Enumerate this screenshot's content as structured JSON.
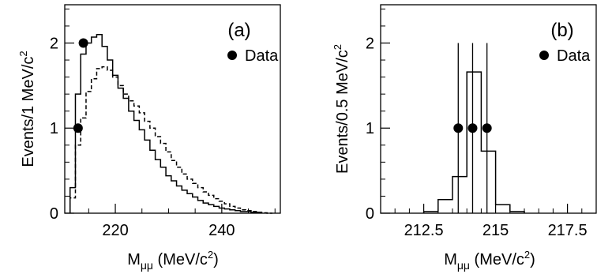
{
  "chart_data": [
    {
      "panel": "a",
      "panel_label": "(a)",
      "type": "line",
      "ylabel": "Events/1 MeV/c",
      "ylabel_sup": "2",
      "xlabel": "M",
      "xlabel_sub": "μμ",
      "xlabel_tail": " (MeV/c",
      "xlabel_sup": "2",
      "xlabel_close": ")",
      "xlim": [
        210.5,
        251
      ],
      "ylim": [
        0,
        2.45
      ],
      "xticks": [
        220,
        240
      ],
      "yticks": [
        0,
        1,
        2
      ],
      "legend": "Data",
      "series": [
        {
          "style": "solid",
          "edges": [
            211.5,
            212.5,
            213.5,
            214.5,
            215.5,
            216.5,
            217.5,
            218.5,
            219.5,
            220.5,
            221.5,
            222.5,
            223.5,
            224.5,
            225.5,
            226.5,
            227.5,
            228.5,
            229.5,
            230.5,
            231.5,
            232.5,
            233.5,
            234.5,
            235.5,
            236.5,
            237.5,
            238.5,
            239.5,
            240.5,
            241.5,
            242.5,
            243.5,
            244.5,
            245.5,
            246.5,
            247.5
          ],
          "values": [
            0.3,
            1.4,
            1.87,
            2.0,
            2.07,
            2.1,
            1.96,
            1.8,
            1.62,
            1.47,
            1.35,
            1.2,
            1.09,
            0.98,
            0.86,
            0.74,
            0.63,
            0.54,
            0.44,
            0.38,
            0.32,
            0.27,
            0.23,
            0.19,
            0.15,
            0.12,
            0.1,
            0.08,
            0.06,
            0.05,
            0.04,
            0.03,
            0.02,
            0.02,
            0.01,
            0.01
          ]
        },
        {
          "style": "dashed",
          "edges": [
            211.5,
            212.5,
            213.5,
            214.5,
            215.5,
            216.5,
            217.5,
            218.5,
            219.5,
            220.5,
            221.5,
            222.5,
            223.5,
            224.5,
            225.5,
            226.5,
            227.5,
            228.5,
            229.5,
            230.5,
            231.5,
            232.5,
            233.5,
            234.5,
            235.5,
            236.5,
            237.5,
            238.5,
            239.5,
            240.5,
            241.5,
            242.5,
            243.5,
            244.5,
            245.5,
            246.5,
            247.5,
            248.5,
            249.5
          ],
          "values": [
            0.18,
            0.8,
            1.12,
            1.43,
            1.58,
            1.7,
            1.72,
            1.68,
            1.6,
            1.5,
            1.4,
            1.32,
            1.26,
            1.18,
            1.08,
            1.0,
            0.9,
            0.82,
            0.72,
            0.62,
            0.54,
            0.46,
            0.4,
            0.35,
            0.3,
            0.25,
            0.21,
            0.17,
            0.14,
            0.11,
            0.08,
            0.06,
            0.04,
            0.03,
            0.02,
            0.01,
            0.005,
            0
          ]
        }
      ],
      "data_points": [
        {
          "x": 213,
          "y": 1
        },
        {
          "x": 214,
          "y": 2
        }
      ]
    },
    {
      "panel": "b",
      "panel_label": "(b)",
      "type": "line",
      "ylabel": "Events/0.5 MeV/c",
      "ylabel_sup": "2",
      "xlabel": "M",
      "xlabel_sub": "μμ",
      "xlabel_tail": " (MeV/c",
      "xlabel_sup": "2",
      "xlabel_close": ")",
      "xlim": [
        211,
        218.5
      ],
      "ylim": [
        0,
        2.45
      ],
      "xticks": [
        212.5,
        215,
        217.5
      ],
      "xticklabels": [
        "212.5",
        "215",
        "217.5"
      ],
      "yticks": [
        0,
        1,
        2
      ],
      "legend": "Data",
      "series": [
        {
          "style": "solid",
          "edges": [
            212.5,
            213.0,
            213.5,
            214.0,
            214.5,
            215.0,
            215.5,
            216.0
          ],
          "values": [
            0.02,
            0.16,
            0.43,
            1.66,
            0.73,
            0.1,
            0.02
          ]
        }
      ],
      "data_points": [
        {
          "x": 213.7,
          "y": 1
        },
        {
          "x": 214.2,
          "y": 1
        },
        {
          "x": 214.7,
          "y": 1
        }
      ],
      "vlines": [
        213.7,
        214.2,
        214.7
      ],
      "vline_top": 2.0
    }
  ]
}
